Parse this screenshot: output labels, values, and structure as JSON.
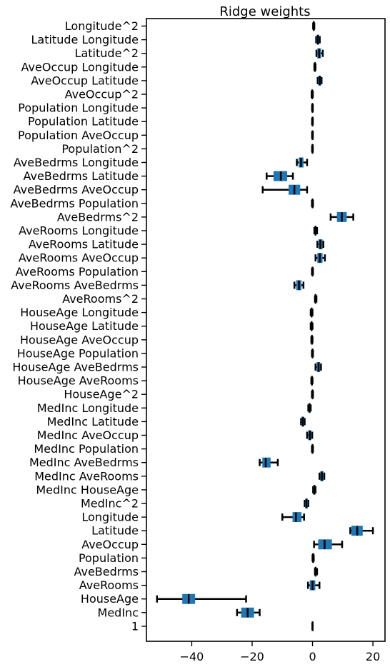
{
  "chart_data": {
    "type": "boxplot",
    "orientation": "horizontal",
    "title": "Ridge weights",
    "xlabel": "",
    "ylabel": "",
    "xlim": [
      -55,
      24
    ],
    "xticks": [
      -40,
      -20,
      0,
      20
    ],
    "grid": false,
    "box_color": "#1f77b4",
    "whisker_color": "#000000",
    "median_color": "#000000",
    "categories": [
      "Longitude^2",
      "Latitude Longitude",
      "Latitude^2",
      "AveOccup Longitude",
      "AveOccup Latitude",
      "AveOccup^2",
      "Population Longitude",
      "Population Latitude",
      "Population AveOccup",
      "Population^2",
      "AveBedrms Longitude",
      "AveBedrms Latitude",
      "AveBedrms AveOccup",
      "AveBedrms Population",
      "AveBedrms^2",
      "AveRooms Longitude",
      "AveRooms Latitude",
      "AveRooms AveOccup",
      "AveRooms Population",
      "AveRooms AveBedrms",
      "AveRooms^2",
      "HouseAge Longitude",
      "HouseAge Latitude",
      "HouseAge AveOccup",
      "HouseAge Population",
      "HouseAge AveBedrms",
      "HouseAge AveRooms",
      "HouseAge^2",
      "MedInc Longitude",
      "MedInc Latitude",
      "MedInc AveOccup",
      "MedInc Population",
      "MedInc AveBedrms",
      "MedInc AveRooms",
      "MedInc HouseAge",
      "MedInc^2",
      "Longitude",
      "Latitude",
      "AveOccup",
      "Population",
      "AveBedrms",
      "AveRooms",
      "HouseAge",
      "MedInc",
      "1"
    ],
    "boxes": [
      {
        "whislo": 0.2,
        "q1": 0.3,
        "med": 0.4,
        "q3": 0.5,
        "whishi": 0.6
      },
      {
        "whislo": 1.2,
        "q1": 1.5,
        "med": 1.8,
        "q3": 2.1,
        "whishi": 2.4
      },
      {
        "whislo": 1.3,
        "q1": 1.7,
        "med": 2.2,
        "q3": 2.7,
        "whishi": 3.4
      },
      {
        "whislo": 0.6,
        "q1": 0.7,
        "med": 0.8,
        "q3": 0.9,
        "whishi": 1.0
      },
      {
        "whislo": 1.7,
        "q1": 2.0,
        "med": 2.4,
        "q3": 2.7,
        "whishi": 3.0
      },
      {
        "whislo": -0.3,
        "q1": -0.2,
        "med": -0.1,
        "q3": 0.0,
        "whishi": 0.1
      },
      {
        "whislo": -0.15,
        "q1": -0.1,
        "med": 0.0,
        "q3": 0.05,
        "whishi": 0.1
      },
      {
        "whislo": -0.15,
        "q1": -0.1,
        "med": 0.0,
        "q3": 0.05,
        "whishi": 0.1
      },
      {
        "whislo": -0.15,
        "q1": -0.1,
        "med": 0.0,
        "q3": 0.05,
        "whishi": 0.1
      },
      {
        "whislo": -0.15,
        "q1": -0.1,
        "med": 0.0,
        "q3": 0.05,
        "whishi": 0.1
      },
      {
        "whislo": -5.2,
        "q1": -4.5,
        "med": -3.8,
        "q3": -3.1,
        "whishi": -1.8
      },
      {
        "whislo": -15.2,
        "q1": -12.8,
        "med": -10.5,
        "q3": -8.5,
        "whishi": -6.5
      },
      {
        "whislo": -16.5,
        "q1": -7.8,
        "med": -6.0,
        "q3": -4.2,
        "whishi": -1.8
      },
      {
        "whislo": -0.2,
        "q1": -0.1,
        "med": 0.0,
        "q3": 0.05,
        "whishi": 0.15
      },
      {
        "whislo": 6.0,
        "q1": 8.2,
        "med": 9.7,
        "q3": 11.2,
        "whishi": 13.5
      },
      {
        "whislo": 0.6,
        "q1": 0.8,
        "med": 1.0,
        "q3": 1.2,
        "whishi": 1.5
      },
      {
        "whislo": 1.6,
        "q1": 2.1,
        "med": 2.6,
        "q3": 3.2,
        "whishi": 3.6
      },
      {
        "whislo": 1.0,
        "q1": 1.7,
        "med": 2.4,
        "q3": 3.2,
        "whishi": 4.1
      },
      {
        "whislo": -0.2,
        "q1": -0.1,
        "med": 0.0,
        "q3": 0.05,
        "whishi": 0.15
      },
      {
        "whislo": -6.0,
        "q1": -5.3,
        "med": -4.5,
        "q3": -3.8,
        "whishi": -3.0
      },
      {
        "whislo": 0.8,
        "q1": 0.9,
        "med": 1.0,
        "q3": 1.1,
        "whishi": 1.3
      },
      {
        "whislo": -0.6,
        "q1": -0.45,
        "med": -0.3,
        "q3": -0.15,
        "whishi": 0.0
      },
      {
        "whislo": -0.6,
        "q1": -0.45,
        "med": -0.3,
        "q3": -0.15,
        "whishi": 0.0
      },
      {
        "whislo": -0.4,
        "q1": -0.3,
        "med": -0.2,
        "q3": -0.1,
        "whishi": 0.0
      },
      {
        "whislo": -0.2,
        "q1": -0.1,
        "med": 0.0,
        "q3": 0.05,
        "whishi": 0.15
      },
      {
        "whislo": 1.0,
        "q1": 1.5,
        "med": 2.0,
        "q3": 2.4,
        "whishi": 2.8
      },
      {
        "whislo": -0.4,
        "q1": -0.3,
        "med": -0.2,
        "q3": -0.1,
        "whishi": 0.0
      },
      {
        "whislo": -0.2,
        "q1": -0.1,
        "med": 0.0,
        "q3": 0.05,
        "whishi": 0.15
      },
      {
        "whislo": -1.4,
        "q1": -1.2,
        "med": -1.0,
        "q3": -0.8,
        "whishi": -0.6
      },
      {
        "whislo": -3.8,
        "q1": -3.5,
        "med": -3.2,
        "q3": -2.9,
        "whishi": -2.6
      },
      {
        "whislo": -1.8,
        "q1": -1.3,
        "med": -0.9,
        "q3": -0.5,
        "whishi": -0.1
      },
      {
        "whislo": -0.2,
        "q1": -0.1,
        "med": 0.0,
        "q3": 0.05,
        "whishi": 0.15
      },
      {
        "whislo": -17.5,
        "q1": -16.5,
        "med": -15.5,
        "q3": -14.0,
        "whishi": -11.5
      },
      {
        "whislo": 2.3,
        "q1": 2.7,
        "med": 3.1,
        "q3": 3.5,
        "whishi": 3.9
      },
      {
        "whislo": 0.2,
        "q1": 0.4,
        "med": 0.6,
        "q3": 0.8,
        "whishi": 1.0
      },
      {
        "whislo": -2.6,
        "q1": -2.3,
        "med": -2.0,
        "q3": -1.7,
        "whishi": -1.4
      },
      {
        "whislo": -10.0,
        "q1": -6.5,
        "med": -5.5,
        "q3": -3.8,
        "whishi": -2.8
      },
      {
        "whislo": 12.5,
        "q1": 13.0,
        "med": 14.8,
        "q3": 16.5,
        "whishi": 20.0
      },
      {
        "whislo": 0.5,
        "q1": 2.0,
        "med": 4.0,
        "q3": 6.3,
        "whishi": 9.8
      },
      {
        "whislo": 0.0,
        "q1": 0.1,
        "med": 0.2,
        "q3": 0.3,
        "whishi": 0.4
      },
      {
        "whislo": 0.8,
        "q1": 0.9,
        "med": 1.0,
        "q3": 1.2,
        "whishi": 1.5
      },
      {
        "whislo": -1.5,
        "q1": -0.8,
        "med": 0.0,
        "q3": 0.8,
        "whishi": 2.3
      },
      {
        "whislo": -51.5,
        "q1": -43.0,
        "med": -41.0,
        "q3": -39.0,
        "whishi": -22.0
      },
      {
        "whislo": -25.0,
        "q1": -23.5,
        "med": -21.5,
        "q3": -19.5,
        "whishi": -17.5
      },
      {
        "whislo": -0.05,
        "q1": -0.02,
        "med": 0.0,
        "q3": 0.02,
        "whishi": 0.05
      }
    ]
  }
}
